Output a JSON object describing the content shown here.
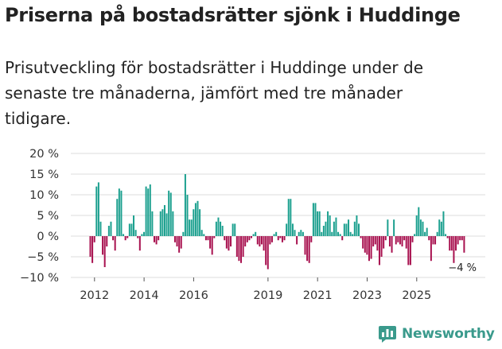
{
  "title": "Priserna på bostadsrätter sjönk i Huddinge",
  "subtitle": "Prisutveckling för bostadsrätter i Huddinge under de senaste tre månaderna, jämfört med tre månader tidigare.",
  "brand": "Newsworthy",
  "colors": {
    "positive": "#1ca08f",
    "negative": "#a8114f",
    "grid": "#dddddd",
    "brand": "#3a9a8c"
  },
  "chart_data": {
    "type": "bar",
    "title": "Priserna på bostadsrätter sjönk i Huddinge",
    "xlabel": "",
    "ylabel": "",
    "ylim": [
      -10,
      20
    ],
    "yticks": [
      {
        "value": 20,
        "label": "20 %"
      },
      {
        "value": 15,
        "label": "15 %"
      },
      {
        "value": 10,
        "label": "10 %"
      },
      {
        "value": 5,
        "label": "5 %"
      },
      {
        "value": 0,
        "label": "0 %"
      },
      {
        "value": -5,
        "label": "−5 %"
      },
      {
        "value": -10,
        "label": "−10 %"
      }
    ],
    "xticks": [
      "2012",
      "2014",
      "2016",
      "2019",
      "2021",
      "2023",
      "2025"
    ],
    "x_start": 2011.83,
    "period": "month",
    "last_value_label": "−4 %",
    "values": [
      -5,
      -6.5,
      -1.5,
      12,
      13,
      3.5,
      -4.5,
      -7.5,
      -2.5,
      2.5,
      3.5,
      -1,
      -3.5,
      9,
      11.5,
      11,
      0.5,
      -1,
      -0.5,
      3,
      3,
      5,
      1.5,
      -0.5,
      -3.5,
      0.5,
      1,
      12,
      11.5,
      12.5,
      6,
      -1.5,
      -2,
      -1,
      6,
      6.5,
      7.5,
      5.5,
      11,
      10.5,
      6,
      -1.5,
      -2.5,
      -4,
      -3,
      1,
      15,
      10,
      4,
      4,
      6.5,
      8,
      8.5,
      6.5,
      1.5,
      0.5,
      -1,
      -1,
      -3,
      -4.5,
      -0.5,
      3.5,
      4.5,
      3.5,
      2.5,
      -1,
      -3,
      -3.5,
      -2.5,
      3,
      3,
      -5,
      -6,
      -6.5,
      -5,
      -2.5,
      -1.5,
      -1,
      -0.5,
      0.5,
      1,
      -2,
      -2.5,
      -2,
      -3.5,
      -7,
      -8,
      -2,
      -1.5,
      0.5,
      1,
      -1,
      -0.5,
      -1.5,
      -1,
      3,
      9,
      9,
      3,
      1.5,
      -2,
      1,
      1.5,
      1,
      -4.5,
      -6,
      -6.5,
      -1.5,
      8,
      8,
      6,
      6,
      1,
      2.5,
      3.5,
      6,
      5,
      1,
      3.5,
      4.5,
      1,
      0.5,
      -1,
      3,
      3,
      4,
      1,
      0.5,
      3.5,
      5,
      3,
      -0.5,
      -3,
      -4,
      -4.5,
      -6,
      -5.5,
      -2.5,
      -2,
      -3.5,
      -7,
      -5,
      -3,
      -1,
      4,
      -2.5,
      -4,
      4,
      -2,
      -1.5,
      -2,
      -2.5,
      -1,
      -3,
      -7,
      -7,
      -1.5,
      0.5,
      5,
      7,
      4,
      3.5,
      1,
      2,
      -1,
      -6,
      -2,
      -2,
      1,
      4,
      3.5,
      6,
      0.5,
      -0.5,
      -3.5,
      -3.5,
      -6.5,
      -3.5,
      -2,
      -1,
      -1,
      -4
    ]
  }
}
